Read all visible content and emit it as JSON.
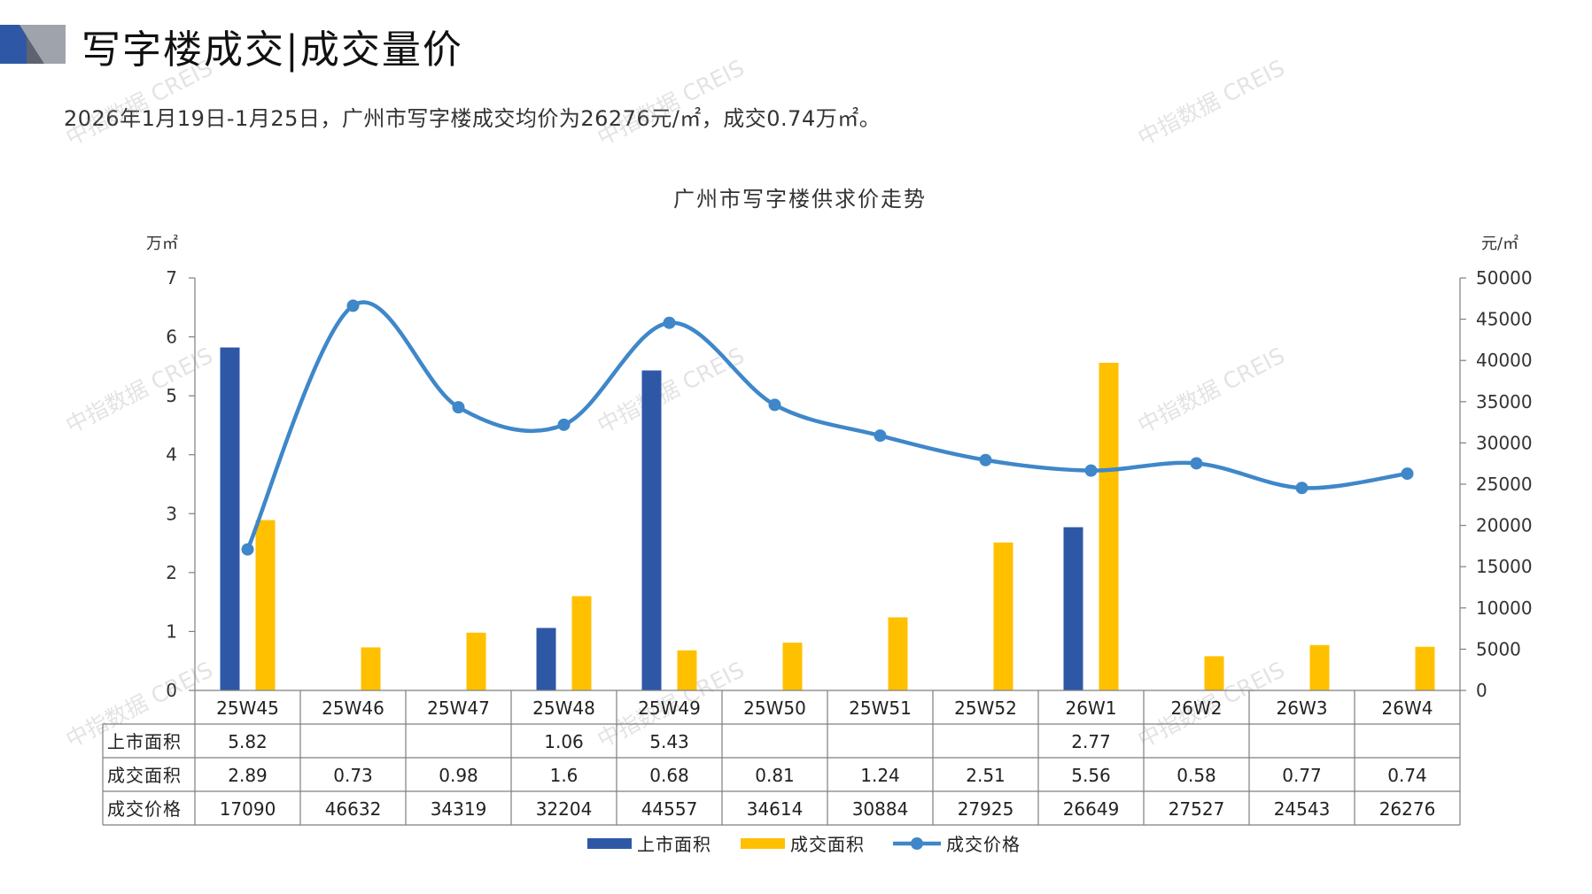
{
  "header": {
    "title": "写字楼成交|成交量价",
    "summary": "2026年1月19日-1月25日，广州市写字楼成交均价为26276元/㎡，成交0.74万㎡。"
  },
  "watermark": {
    "text": "中指数据 CREIS"
  },
  "chart_data": {
    "type": "bar",
    "title": "广州市写字楼供求价走势",
    "categories": [
      "25W45",
      "25W46",
      "25W47",
      "25W48",
      "25W49",
      "25W50",
      "25W51",
      "25W52",
      "26W1",
      "26W2",
      "26W3",
      "26W4"
    ],
    "y_left": {
      "label": "万㎡",
      "range": [
        0,
        7
      ],
      "ticks": [
        "0",
        "1",
        "2",
        "3",
        "4",
        "5",
        "6",
        "7"
      ]
    },
    "y_right": {
      "label": "元/㎡",
      "range": [
        0,
        50000
      ],
      "ticks": [
        "0",
        "5000",
        "10000",
        "15000",
        "20000",
        "25000",
        "30000",
        "35000",
        "40000",
        "45000",
        "50000"
      ]
    },
    "series": [
      {
        "name": "上市面积",
        "type": "bar",
        "axis": "left",
        "color": "#2E58A6",
        "values": [
          5.82,
          null,
          null,
          1.06,
          5.43,
          null,
          null,
          null,
          2.77,
          null,
          null,
          null
        ],
        "labels": [
          "5.82",
          "",
          "",
          "1.06",
          "5.43",
          "",
          "",
          "",
          "2.77",
          "",
          "",
          ""
        ]
      },
      {
        "name": "成交面积",
        "type": "bar",
        "axis": "left",
        "color": "#FFC000",
        "values": [
          2.89,
          0.73,
          0.98,
          1.6,
          0.68,
          0.81,
          1.24,
          2.51,
          5.56,
          0.58,
          0.77,
          0.74
        ],
        "labels": [
          "2.89",
          "0.73",
          "0.98",
          "1.6",
          "0.68",
          "0.81",
          "1.24",
          "2.51",
          "5.56",
          "0.58",
          "0.77",
          "0.74"
        ]
      },
      {
        "name": "成交价格",
        "type": "line",
        "axis": "right",
        "color": "#3F87C9",
        "values": [
          17090,
          46632,
          34319,
          32204,
          44557,
          34614,
          30884,
          27925,
          26649,
          27527,
          24543,
          26276
        ],
        "labels": [
          "17090",
          "46632",
          "34319",
          "32204",
          "44557",
          "34614",
          "30884",
          "27925",
          "26649",
          "27527",
          "24543",
          "26276"
        ]
      }
    ],
    "legend": "bottom",
    "data_table": true,
    "grid": false
  }
}
